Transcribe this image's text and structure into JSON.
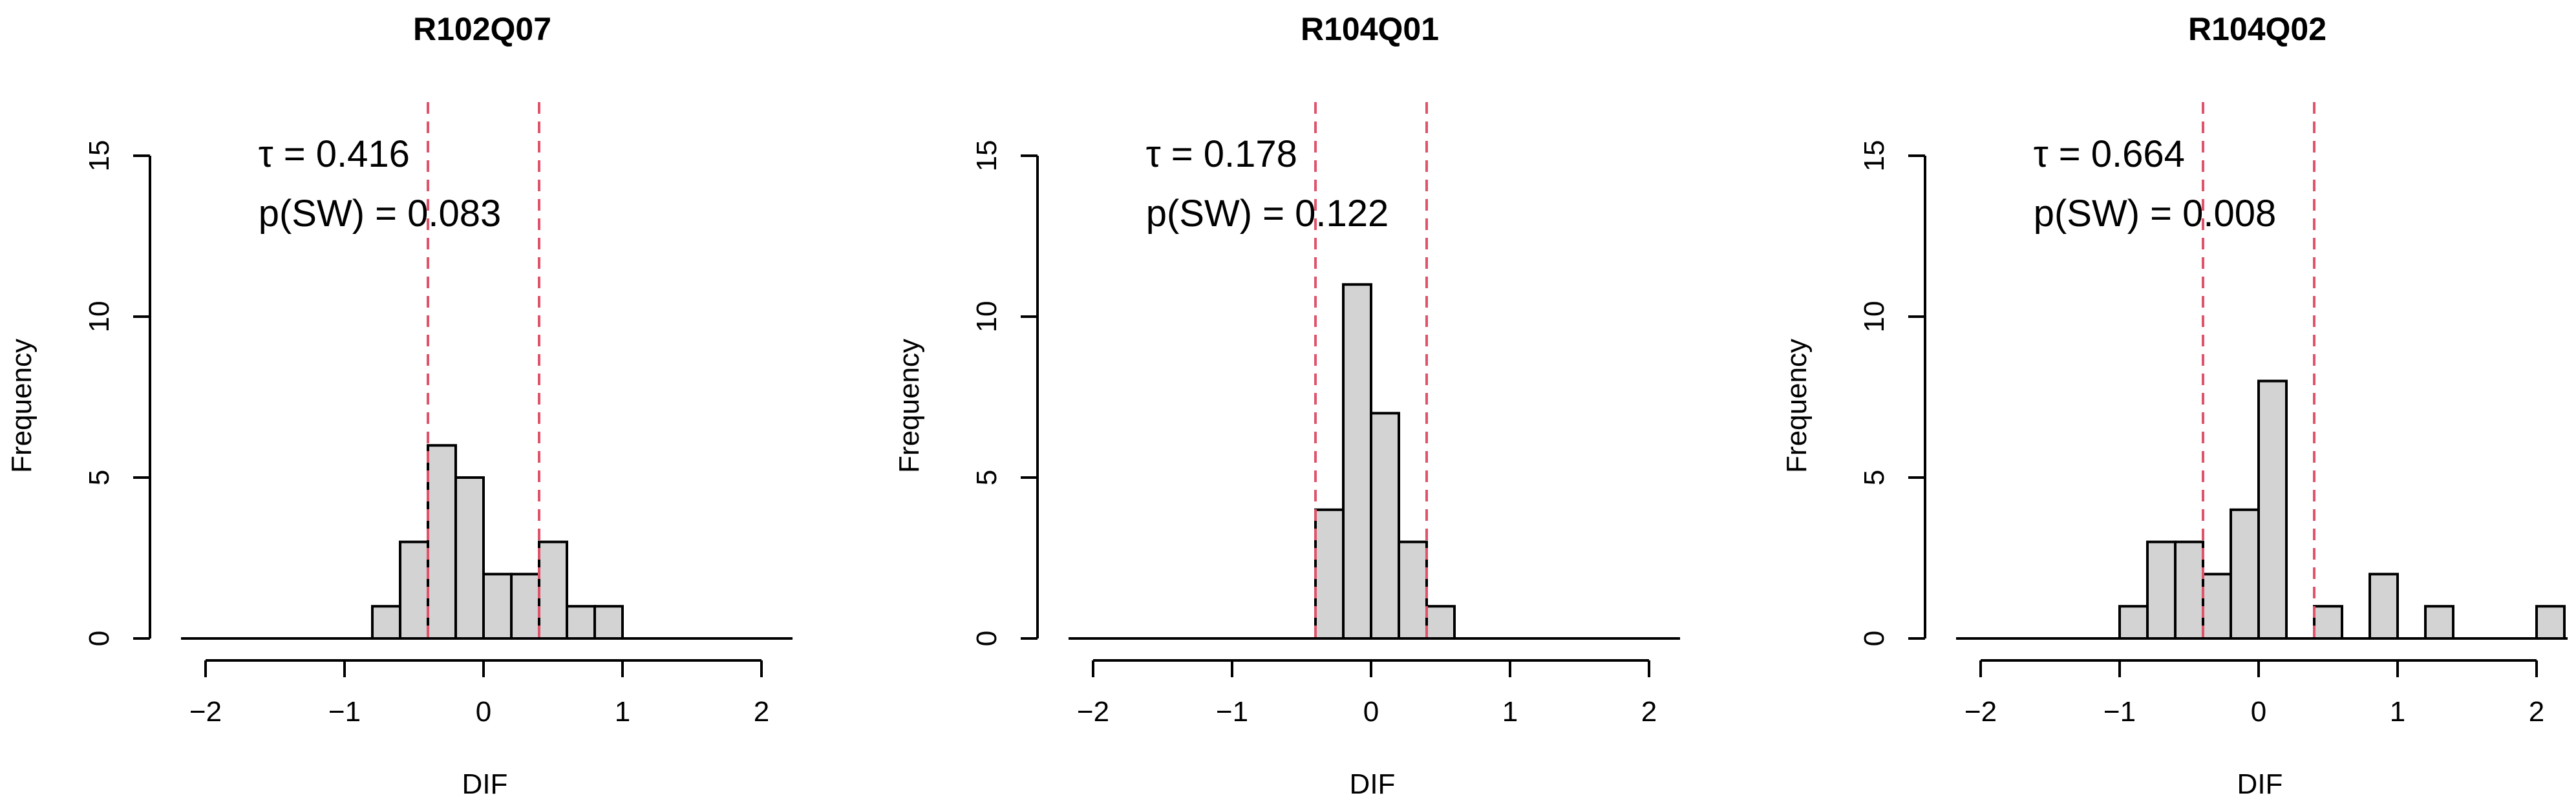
{
  "chart_data": [
    {
      "type": "bar",
      "title": "R102Q07",
      "xlabel": "DIF",
      "ylabel": "Frequency",
      "xlim": [
        -2.2,
        2.2
      ],
      "ylim": [
        0,
        15
      ],
      "xticks": [
        -2,
        -1,
        0,
        1,
        2
      ],
      "yticks": [
        0,
        5,
        10,
        15
      ],
      "bin_width": 0.2,
      "bins": [
        {
          "x0": -0.8,
          "x1": -0.6,
          "count": 1
        },
        {
          "x0": -0.6,
          "x1": -0.4,
          "count": 3
        },
        {
          "x0": -0.4,
          "x1": -0.2,
          "count": 6
        },
        {
          "x0": -0.2,
          "x1": 0.0,
          "count": 5
        },
        {
          "x0": 0.0,
          "x1": 0.2,
          "count": 2
        },
        {
          "x0": 0.2,
          "x1": 0.4,
          "count": 2
        },
        {
          "x0": 0.4,
          "x1": 0.6,
          "count": 3
        },
        {
          "x0": 0.6,
          "x1": 0.8,
          "count": 1
        },
        {
          "x0": 0.8,
          "x1": 1.0,
          "count": 1
        }
      ],
      "ref_lines": [
        -0.4,
        0.4
      ],
      "tau_label": "τ = 0.416",
      "psw_label": "p(SW) = 0.083"
    },
    {
      "type": "bar",
      "title": "R104Q01",
      "xlabel": "DIF",
      "ylabel": "Frequency",
      "xlim": [
        -2.2,
        2.2
      ],
      "ylim": [
        0,
        15
      ],
      "xticks": [
        -2,
        -1,
        0,
        1,
        2
      ],
      "yticks": [
        0,
        5,
        10,
        15
      ],
      "bin_width": 0.2,
      "bins": [
        {
          "x0": -0.4,
          "x1": -0.2,
          "count": 4
        },
        {
          "x0": -0.2,
          "x1": 0.0,
          "count": 11
        },
        {
          "x0": 0.0,
          "x1": 0.2,
          "count": 7
        },
        {
          "x0": 0.2,
          "x1": 0.4,
          "count": 3
        },
        {
          "x0": 0.4,
          "x1": 0.6,
          "count": 1
        }
      ],
      "ref_lines": [
        -0.4,
        0.4
      ],
      "tau_label": "τ = 0.178",
      "psw_label": "p(SW) = 0.122"
    },
    {
      "type": "bar",
      "title": "R104Q02",
      "xlabel": "DIF",
      "ylabel": "Frequency",
      "xlim": [
        -2.2,
        2.2
      ],
      "ylim": [
        0,
        15
      ],
      "xticks": [
        -2,
        -1,
        0,
        1,
        2
      ],
      "yticks": [
        0,
        5,
        10,
        15
      ],
      "bin_width": 0.2,
      "bins": [
        {
          "x0": -1.0,
          "x1": -0.8,
          "count": 1
        },
        {
          "x0": -0.8,
          "x1": -0.6,
          "count": 3
        },
        {
          "x0": -0.6,
          "x1": -0.4,
          "count": 3
        },
        {
          "x0": -0.4,
          "x1": -0.2,
          "count": 2
        },
        {
          "x0": -0.2,
          "x1": 0.0,
          "count": 4
        },
        {
          "x0": 0.0,
          "x1": 0.2,
          "count": 8
        },
        {
          "x0": 0.2,
          "x1": 0.4,
          "count": 0
        },
        {
          "x0": 0.4,
          "x1": 0.6,
          "count": 1
        },
        {
          "x0": 0.6,
          "x1": 0.8,
          "count": 0
        },
        {
          "x0": 0.8,
          "x1": 1.0,
          "count": 2
        },
        {
          "x0": 1.0,
          "x1": 1.2,
          "count": 0
        },
        {
          "x0": 1.2,
          "x1": 1.4,
          "count": 1
        },
        {
          "x0": 1.4,
          "x1": 1.6,
          "count": 0
        },
        {
          "x0": 1.6,
          "x1": 1.8,
          "count": 0
        },
        {
          "x0": 1.8,
          "x1": 2.0,
          "count": 0
        },
        {
          "x0": 2.0,
          "x1": 2.2,
          "count": 1
        }
      ],
      "ref_lines": [
        -0.4,
        0.4
      ],
      "tau_label": "τ = 0.664",
      "psw_label": "p(SW) = 0.008"
    }
  ],
  "colors": {
    "bar_fill": "#d3d3d3",
    "bar_stroke": "#000000",
    "ref_line": "#df536b",
    "axis": "#000000"
  }
}
